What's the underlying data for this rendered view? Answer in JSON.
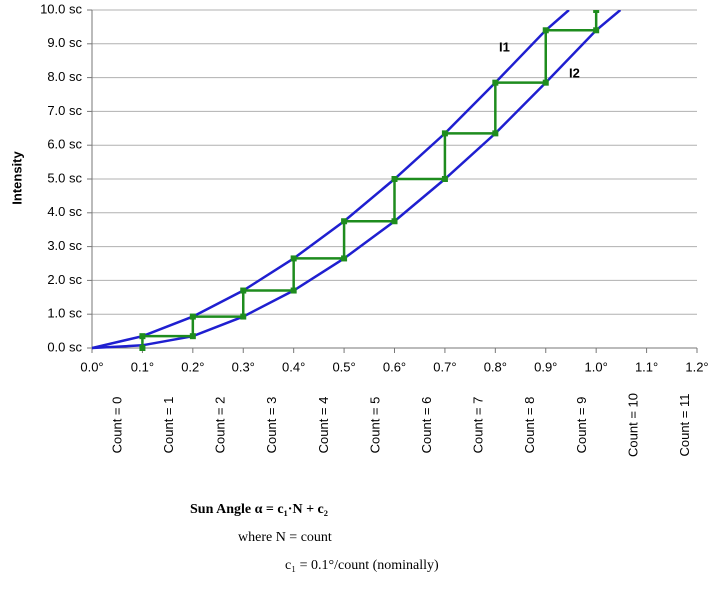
{
  "chart_data": {
    "type": "line",
    "y_label": "Intensity",
    "xlim": [
      0,
      1.2
    ],
    "ylim": [
      0,
      10
    ],
    "grid": true,
    "xticks": [
      {
        "value": 0,
        "label": "0.0°"
      },
      {
        "value": 0.1,
        "label": "0.1°"
      },
      {
        "value": 0.2,
        "label": "0.2°"
      },
      {
        "value": 0.3,
        "label": "0.3°"
      },
      {
        "value": 0.4,
        "label": "0.4°"
      },
      {
        "value": 0.5,
        "label": "0.5°"
      },
      {
        "value": 0.6,
        "label": "0.6°"
      },
      {
        "value": 0.7,
        "label": "0.7°"
      },
      {
        "value": 0.8,
        "label": "0.8°"
      },
      {
        "value": 0.9,
        "label": "0.9°"
      },
      {
        "value": 1.0,
        "label": "1.0°"
      },
      {
        "value": 1.1,
        "label": "1.1°"
      },
      {
        "value": 1.2,
        "label": "1.2°"
      }
    ],
    "yticks": [
      {
        "value": 0,
        "label": "0.0 sc"
      },
      {
        "value": 1,
        "label": "1.0 sc"
      },
      {
        "value": 2,
        "label": "2.0 sc"
      },
      {
        "value": 3,
        "label": "3.0 sc"
      },
      {
        "value": 4,
        "label": "4.0 sc"
      },
      {
        "value": 5,
        "label": "5.0 sc"
      },
      {
        "value": 6,
        "label": "6.0 sc"
      },
      {
        "value": 7,
        "label": "7.0 sc"
      },
      {
        "value": 8,
        "label": "8.0 sc"
      },
      {
        "value": 9,
        "label": "9.0 sc"
      },
      {
        "value": 10,
        "label": "10.0 sc"
      }
    ],
    "series": [
      {
        "name": "I1",
        "color": "#1f1fd0",
        "x": [
          0,
          0.1,
          0.2,
          0.3,
          0.4,
          0.5,
          0.6,
          0.7,
          0.8,
          0.9,
          0.946
        ],
        "values": [
          0,
          0.35,
          0.93,
          1.7,
          2.65,
          3.75,
          5.0,
          6.35,
          7.85,
          9.4,
          10
        ]
      },
      {
        "name": "I2",
        "color": "#1f1fd0",
        "x": [
          0,
          0.1,
          0.2,
          0.3,
          0.4,
          0.5,
          0.6,
          0.7,
          0.8,
          0.9,
          1.0,
          1.048
        ],
        "values": [
          0,
          0.08,
          0.35,
          0.93,
          1.7,
          2.65,
          3.75,
          5.0,
          6.35,
          7.85,
          9.4,
          10
        ]
      },
      {
        "color": "#1e8c1e",
        "x": [
          0.1,
          0.1,
          0.2,
          0.2,
          0.3,
          0.3,
          0.4,
          0.4,
          0.5,
          0.5,
          0.6,
          0.6,
          0.7,
          0.7,
          0.8,
          0.8,
          0.9,
          0.9,
          1.0,
          1.0
        ],
        "values": [
          0,
          0.35,
          0.35,
          0.93,
          0.93,
          1.7,
          1.7,
          2.65,
          2.65,
          3.75,
          3.75,
          5.0,
          5.0,
          6.35,
          6.35,
          7.85,
          7.85,
          9.4,
          9.4,
          10
        ]
      }
    ]
  },
  "count_labels": [
    "Count = 0",
    "Count = 1",
    "Count = 2",
    "Count = 3",
    "Count = 4",
    "Count = 5",
    "Count = 6",
    "Count = 7",
    "Count = 8",
    "Count = 9",
    "Count = 10",
    "Count = 11"
  ],
  "formula": {
    "line1": "Sun Angle α = c₁·N + c₂",
    "line2": "where  N = count",
    "line3": "c₁ = 0.1°/count (nominally)"
  }
}
